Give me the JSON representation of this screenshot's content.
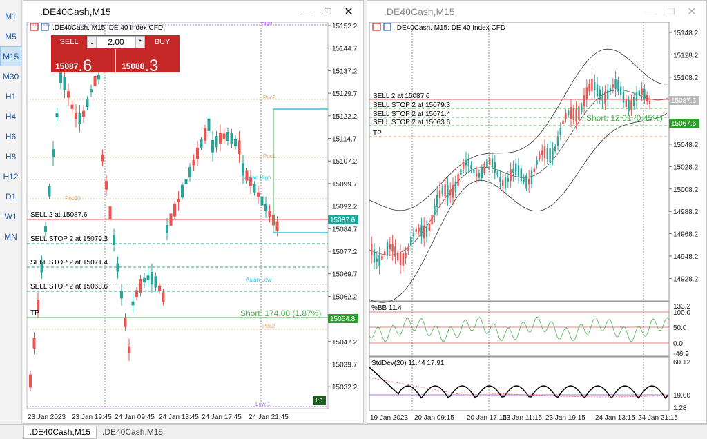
{
  "timeframes": [
    "M1",
    "M5",
    "M15",
    "M30",
    "H1",
    "H4",
    "H6",
    "H8",
    "H12",
    "D1",
    "W1",
    "MN"
  ],
  "active_timeframe": "M15",
  "windows": [
    {
      "title": ".DE40Cash,M15",
      "header": ".DE40Cash, M15:  DE 40 Index CFD",
      "price_labels": [
        "15152.2",
        "15144.7",
        "15137.2",
        "15129.7",
        "15122.2",
        "15114.7",
        "15107.2",
        "15099.7",
        "15092.2",
        "15084.7",
        "15077.2",
        "15069.7",
        "15062.2",
        "15054.7",
        "15047.2",
        "15039.7",
        "15032.2"
      ],
      "current_price_badge": "15087.6",
      "tp_badge": "15054.8",
      "order_lines": [
        "SELL 2 at 15087.6",
        "SELL STOP 2 at 15079.3",
        "SELL STOP 2 at 15071.4",
        "SELL STOP 2 at 15063.6",
        "TP"
      ],
      "levels": [
        "High",
        "Poc9",
        "Poc1",
        "Asian High",
        "Poc10",
        "Asian Low",
        "Poc2",
        "Low 1"
      ],
      "short_label": "Short: 174.00 (1.87%)",
      "time_labels": [
        "23 Jan 2023",
        "23 Jan 19:45",
        "24 Jan 09:45",
        "24 Jan 13:45",
        "24 Jan 17:45",
        "24 Jan 21:45"
      ],
      "trade_panel": {
        "sell": "SELL",
        "buy": "BUY",
        "volume": "2.00",
        "bid_prefix": "15087",
        "bid_big": ".6",
        "ask_prefix": "15088",
        "ask_big": ".3"
      },
      "corner_badge": "1:0"
    },
    {
      "title": ".DE40Cash,M15",
      "header": ".DE40Cash, M15:  DE 40 Index CFD",
      "price_labels": [
        "15148.2",
        "15128.2",
        "15108.2",
        "15087.6",
        "15067.6",
        "15048.2",
        "15028.2",
        "15008.2",
        "14988.2",
        "14968.2",
        "14948.2",
        "14928.2"
      ],
      "current_price_badge": "15087.6",
      "tp_badge": "15067.6",
      "order_lines": [
        "SELL 2 at 15087.6",
        "SELL STOP 2 at 15079.3",
        "SELL STOP 2 at 15071.4",
        "SELL STOP 2 at 15063.6",
        "TP"
      ],
      "short_label": "Short: 12.01 (0.45%)",
      "bb_label": "%BB 11.4",
      "bb_ticks": [
        "133.2",
        "100.0",
        "50.0",
        "0.0",
        "-46.9"
      ],
      "std_label": "StdDev(20) 11.44 17.91",
      "std_ticks": [
        "60.12",
        "19.00",
        "1.28"
      ],
      "time_labels": [
        "19 Jan 2023",
        "20 Jan 09:15",
        "20 Jan 17:15",
        "23 Jan 11:15",
        "23 Jan 19:15",
        "24 Jan 13:15",
        "24 Jan 21:15"
      ]
    }
  ],
  "tabs": [
    ".DE40Cash,M15",
    ".DE40Cash,M15"
  ],
  "colors": {
    "bull": "#26a69a",
    "bear": "#ef5350",
    "sell": "#d32f2f",
    "accent": "#1e5aa8"
  }
}
